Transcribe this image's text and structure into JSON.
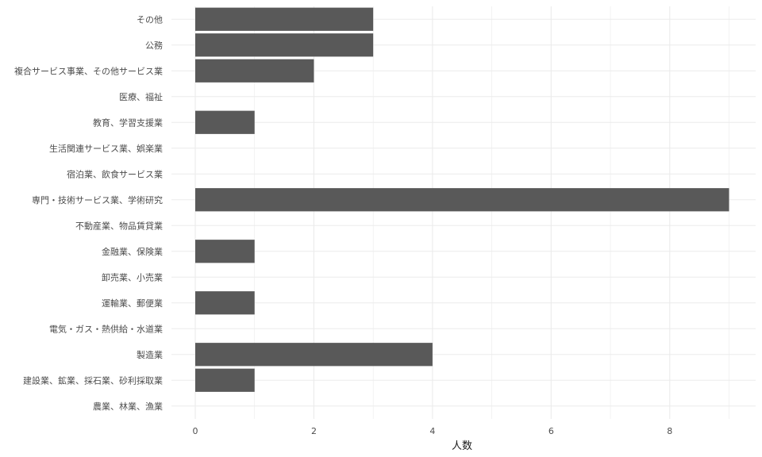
{
  "chart_data": {
    "type": "bar",
    "orientation": "horizontal",
    "xlabel": "人数",
    "ylabel": "",
    "xlim": [
      0,
      9
    ],
    "xticks": [
      0,
      2,
      4,
      6,
      8
    ],
    "grid": true,
    "bar_color": "#595959",
    "gridline_color": "#ebebeb",
    "categories": [
      "農業、林業、漁業",
      "建設業、鉱業、採石業、砂利採取業",
      "製造業",
      "電気・ガス・熱供給・水道業",
      "運輸業、郵便業",
      "卸売業、小売業",
      "金融業、保険業",
      "不動産業、物品賃貸業",
      "専門・技術サービス業、学術研究",
      "宿泊業、飲食サービス業",
      "生活関連サービス業、娯楽業",
      "教育、学習支援業",
      "医療、福祉",
      "複合サービス事業、その他サービス業",
      "公務",
      "その他"
    ],
    "values": [
      0,
      1,
      4,
      0,
      1,
      0,
      1,
      0,
      9,
      0,
      0,
      1,
      0,
      2,
      3,
      3
    ]
  }
}
